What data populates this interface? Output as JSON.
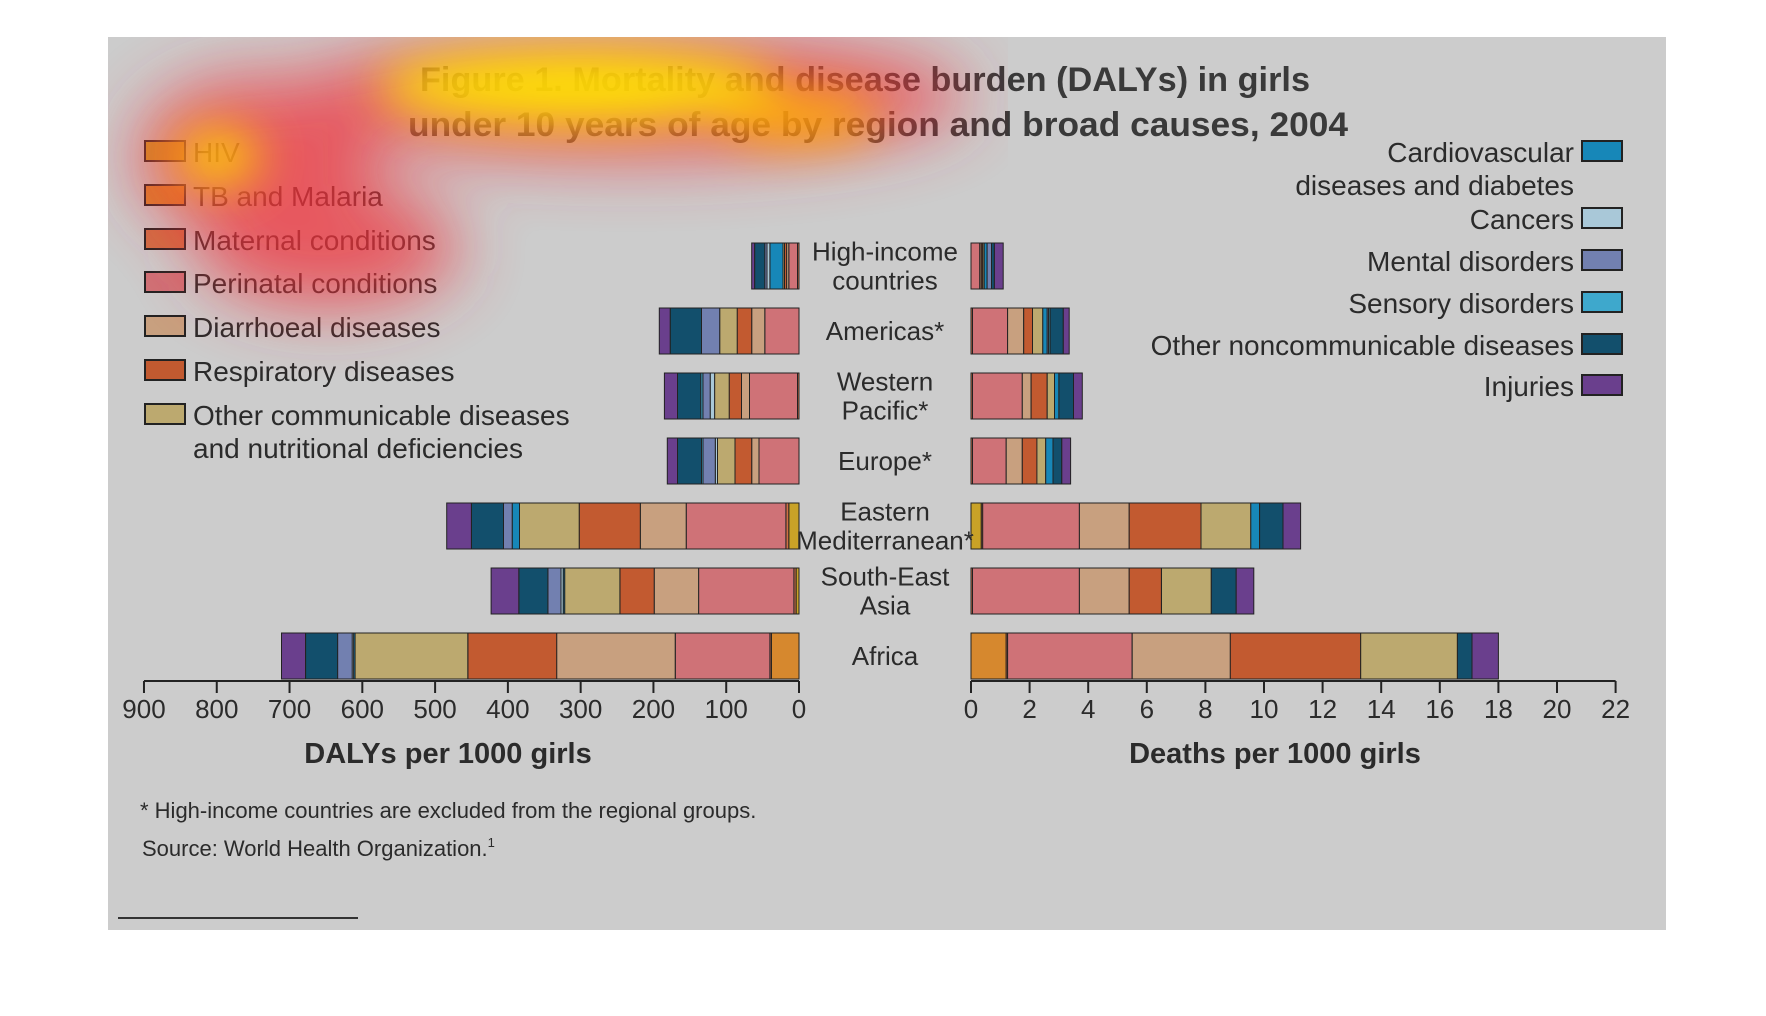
{
  "title_lines": [
    "Figure 1. Mortality and disease burden (DALYs) in girls",
    "under 10 years of age by region and broad causes, 2004"
  ],
  "footnote": "* High-income countries are excluded from the regional groups.",
  "source": "Source: World Health Organization.",
  "source_sup": "1",
  "chart_data": {
    "type": "bar",
    "orientation": "horizontal-stacked",
    "regions": [
      "High-income countries",
      "Americas*",
      "Western Pacific*",
      "Europe*",
      "Eastern Mediterranean*",
      "South-East Asia",
      "Africa"
    ],
    "region_label_lines": [
      [
        "High-income",
        "countries"
      ],
      [
        "Americas*"
      ],
      [
        "Western",
        "Pacific*"
      ],
      [
        "Europe*"
      ],
      [
        "Eastern",
        "Mediterranean*"
      ],
      [
        "South-East",
        "Asia"
      ],
      [
        "Africa"
      ]
    ],
    "causes": [
      {
        "name": "HIV",
        "color": "#c9a227"
      },
      {
        "name": "TB and Malaria",
        "color": "#d6882e"
      },
      {
        "name": "Maternal conditions",
        "color": "#cf6f45"
      },
      {
        "name": "Perinatal conditions",
        "color": "#cf7277"
      },
      {
        "name": "Diarrhoeal diseases",
        "color": "#c8a07f"
      },
      {
        "name": "Respiratory diseases",
        "color": "#c25a30"
      },
      {
        "name": "Other communicable diseases and nutritional deficiencies",
        "color": "#bca96f"
      },
      {
        "name": "Cardiovascular diseases and diabetes",
        "color": "#1787b8"
      },
      {
        "name": "Cancers",
        "color": "#a9c8d8"
      },
      {
        "name": "Mental disorders",
        "color": "#7280b0"
      },
      {
        "name": "Sensory disorders",
        "color": "#3ea8cc"
      },
      {
        "name": "Other noncommunicable diseases",
        "color": "#124f6c"
      },
      {
        "name": "Injuries",
        "color": "#6a3f8d"
      }
    ],
    "legend_left": [
      {
        "lines": [
          "HIV"
        ],
        "cause": 0
      },
      {
        "lines": [
          "TB and Malaria"
        ],
        "cause": 1
      },
      {
        "lines": [
          "Maternal conditions"
        ],
        "cause": 2
      },
      {
        "lines": [
          "Perinatal conditions"
        ],
        "cause": 3
      },
      {
        "lines": [
          "Diarrhoeal diseases"
        ],
        "cause": 4
      },
      {
        "lines": [
          "Respiratory diseases"
        ],
        "cause": 5
      },
      {
        "lines": [
          "Other communicable diseases",
          "and nutritional deficiencies"
        ],
        "cause": 6
      }
    ],
    "legend_right": [
      {
        "lines": [
          "Cardiovascular",
          "diseases and diabetes"
        ],
        "cause": 7
      },
      {
        "lines": [
          "Cancers"
        ],
        "cause": 8
      },
      {
        "lines": [
          "Mental disorders"
        ],
        "cause": 9
      },
      {
        "lines": [
          "Sensory disorders"
        ],
        "cause": 10
      },
      {
        "lines": [
          "Other noncommunicable diseases"
        ],
        "cause": 11
      },
      {
        "lines": [
          "Injuries"
        ],
        "cause": 12
      }
    ],
    "dalys": {
      "xlabel": "DALYs per 1000 girls",
      "xlim": [
        0,
        900
      ],
      "ticks": [
        900,
        800,
        700,
        600,
        500,
        400,
        300,
        200,
        100,
        0
      ],
      "values": [
        [
          0,
          0,
          2,
          12,
          3,
          3,
          2,
          18,
          4,
          3,
          0,
          14,
          4
        ],
        [
          0,
          0,
          0,
          47,
          18,
          20,
          24,
          0,
          0,
          25,
          0,
          43,
          15
        ],
        [
          0,
          0,
          2,
          66,
          11,
          17,
          20,
          0,
          6,
          10,
          3,
          32,
          18
        ],
        [
          0,
          0,
          0,
          55,
          10,
          23,
          24,
          0,
          3,
          17,
          2,
          33,
          14
        ],
        [
          14,
          0,
          4,
          137,
          63,
          84,
          82,
          10,
          0,
          12,
          0,
          44,
          34
        ],
        [
          4,
          0,
          3,
          131,
          61,
          47,
          76,
          2,
          3,
          18,
          0,
          40,
          38
        ],
        [
          0,
          38,
          2,
          130,
          163,
          122,
          155,
          2,
          2,
          20,
          0,
          44,
          33
        ]
      ]
    },
    "deaths": {
      "xlabel": "Deaths per 1000 girls",
      "xlim": [
        0,
        22
      ],
      "ticks": [
        0,
        2,
        4,
        6,
        8,
        10,
        12,
        14,
        16,
        18,
        20,
        22
      ],
      "values": [
        [
          0,
          0,
          0,
          0.3,
          0.05,
          0.05,
          0.05,
          0.1,
          0,
          0.15,
          0,
          0.1,
          0.3
        ],
        [
          0,
          0,
          0.05,
          1.2,
          0.55,
          0.3,
          0.35,
          0.15,
          0,
          0.05,
          0.05,
          0.45,
          0.2
        ],
        [
          0,
          0,
          0.05,
          1.7,
          0.3,
          0.55,
          0.25,
          0.15,
          0,
          0,
          0,
          0.5,
          0.3
        ],
        [
          0,
          0,
          0.05,
          1.15,
          0.55,
          0.5,
          0.3,
          0.25,
          0,
          0,
          0,
          0.3,
          0.3
        ],
        [
          0.35,
          0,
          0.05,
          3.3,
          1.7,
          2.45,
          1.7,
          0.3,
          0,
          0,
          0,
          0.8,
          0.6
        ],
        [
          0,
          0,
          0.05,
          3.65,
          1.7,
          1.1,
          1.7,
          0,
          0,
          0,
          0,
          0.85,
          0.6
        ],
        [
          0,
          1.2,
          0.05,
          4.25,
          3.35,
          4.45,
          3.3,
          0,
          0,
          0,
          0,
          0.5,
          0.9
        ]
      ]
    },
    "grid": false
  }
}
